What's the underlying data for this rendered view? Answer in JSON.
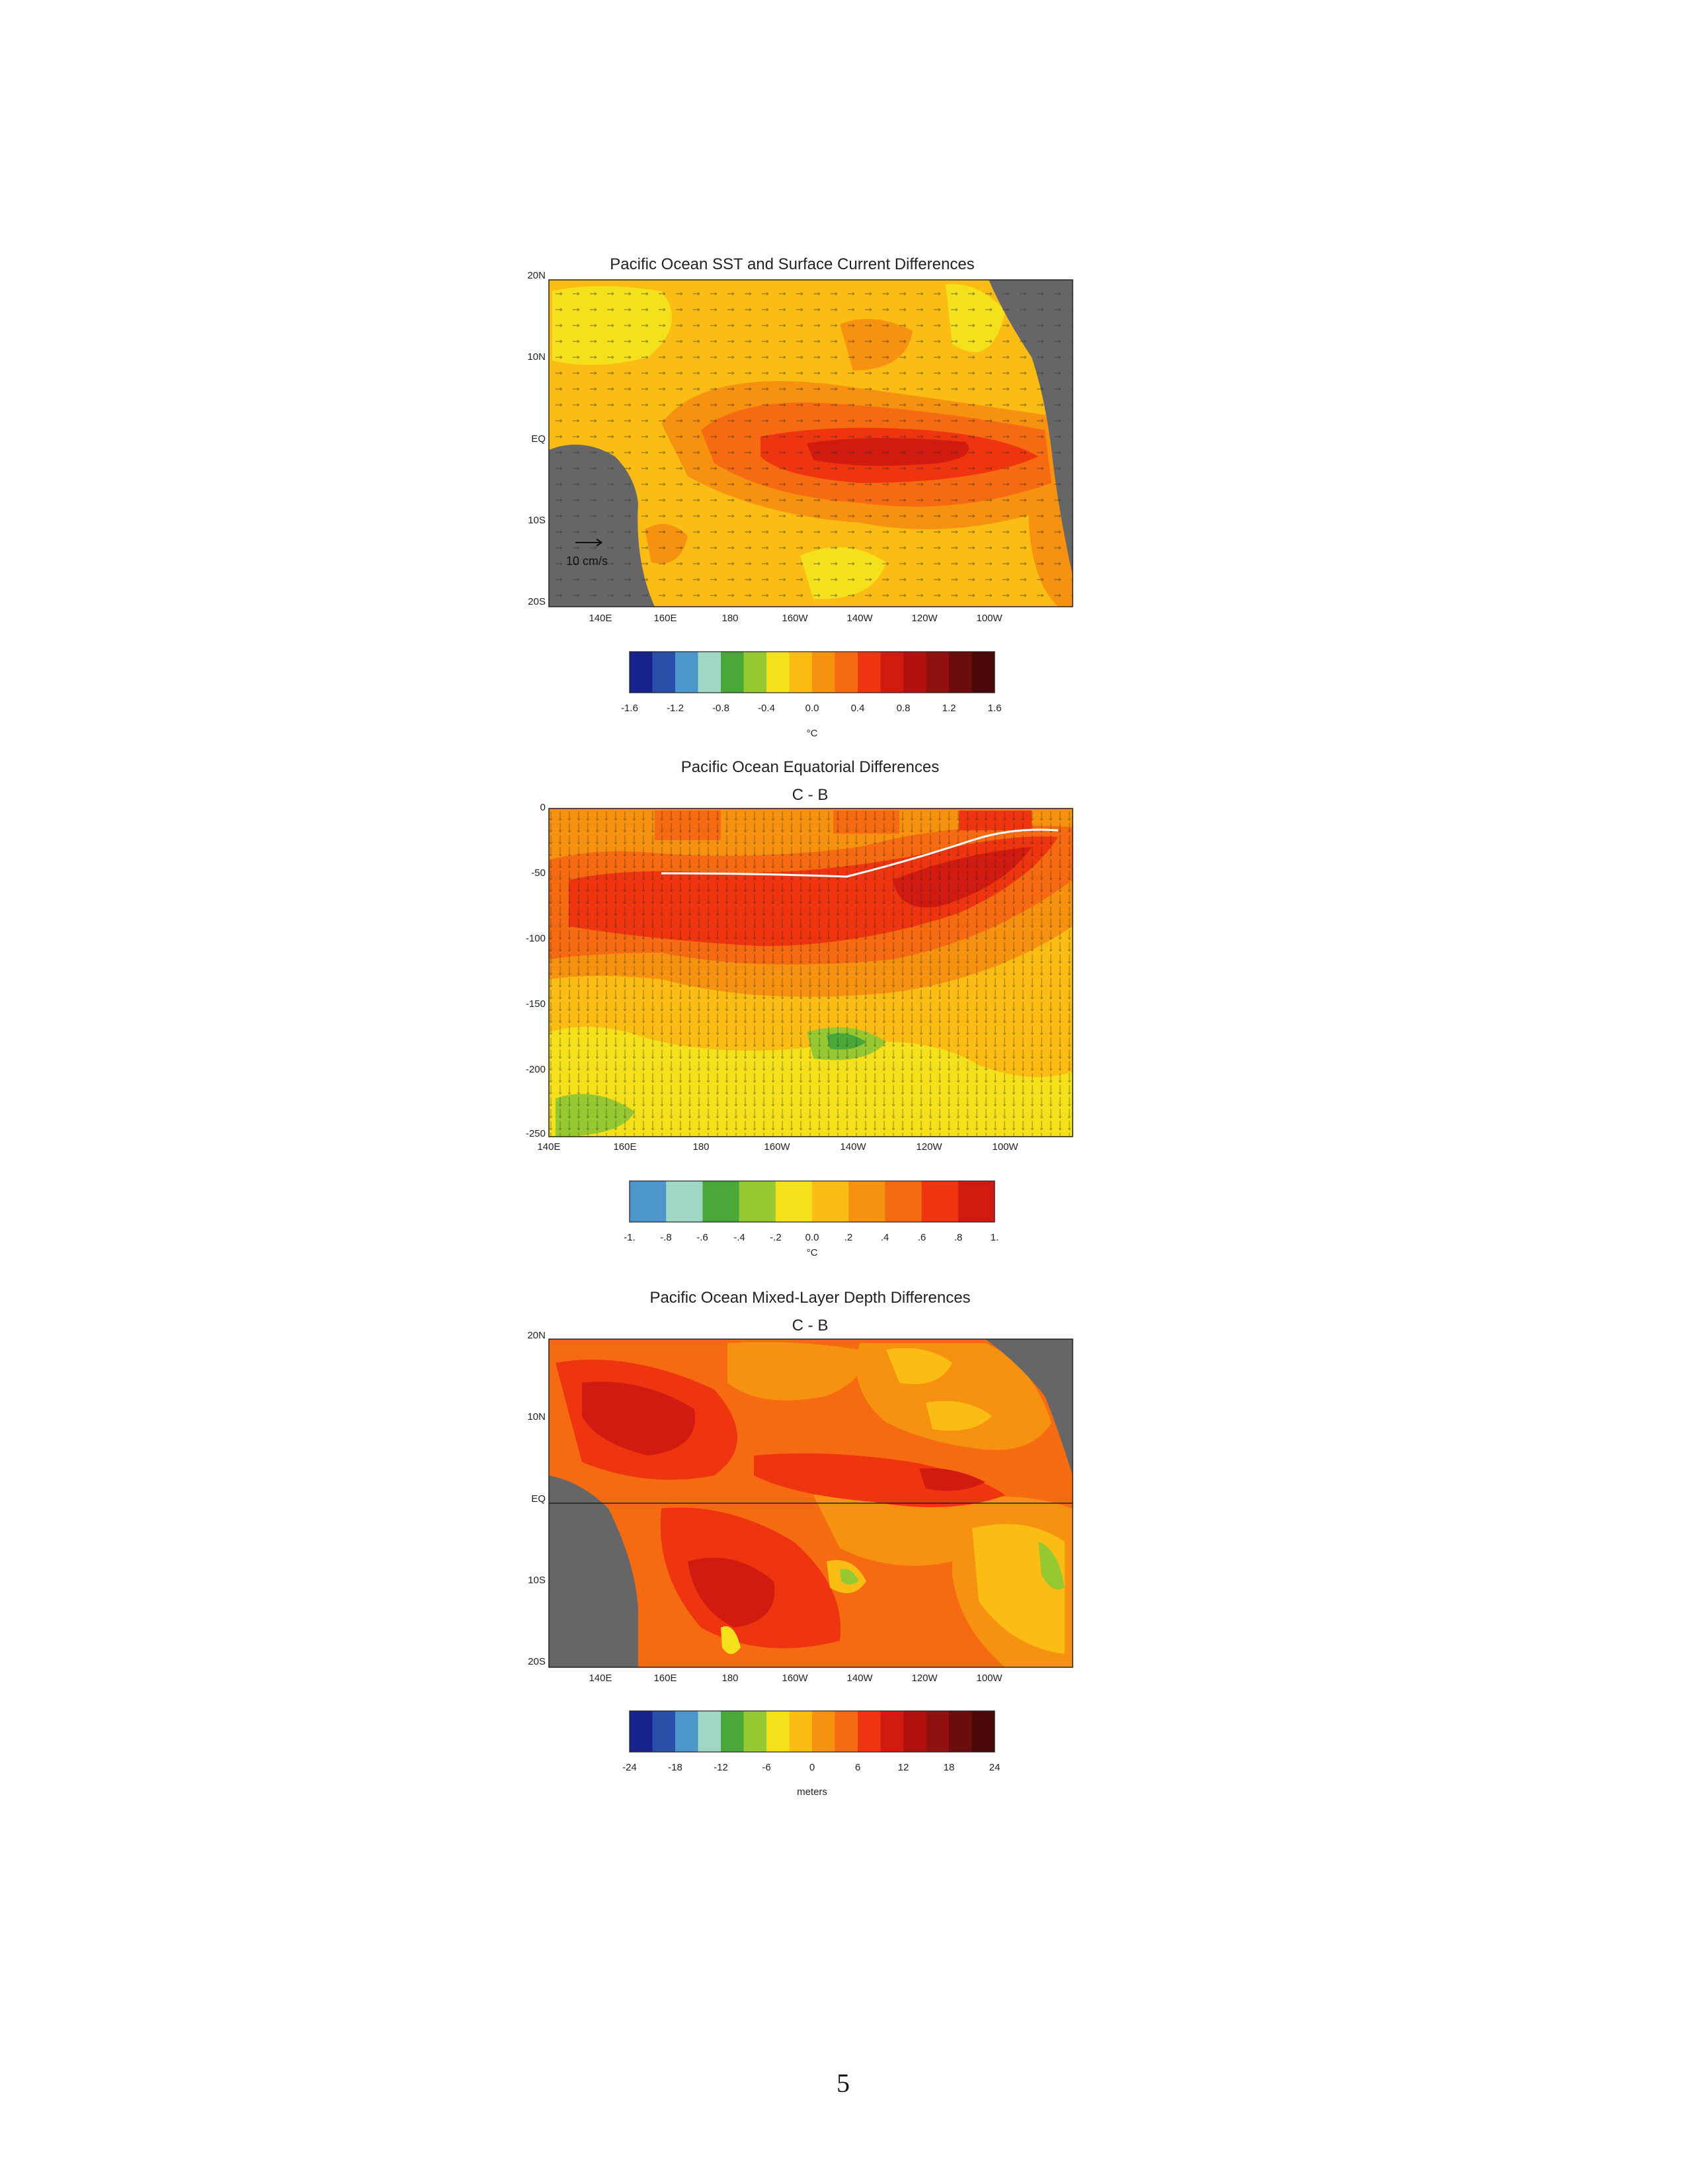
{
  "page": {
    "number": "5"
  },
  "chart_data": [
    {
      "type": "heatmap",
      "title": "Pacific Ocean SST and Surface Current Differences",
      "subtitle": "",
      "x_tick_labels": [
        "140E",
        "160E",
        "180",
        "160W",
        "140W",
        "120W",
        "100W"
      ],
      "y_tick_labels": [
        "20N",
        "10N",
        "EQ",
        "10S",
        "20S"
      ],
      "x_range": [
        "130E",
        "80W"
      ],
      "y_range": [
        "20S",
        "20N"
      ],
      "reference_vector": {
        "label": "10 cm/s",
        "value": 10
      },
      "colorbar": {
        "tick_labels": [
          "-1.6",
          "-1.2",
          "-0.8",
          "-0.4",
          "0.0",
          "0.4",
          "0.8",
          "1.2",
          "1.6"
        ],
        "unit": "°C",
        "colors": [
          "#16238c",
          "#2850a8",
          "#4c96cc",
          "#9fd7c7",
          "#4aa838",
          "#96c832",
          "#f4e11c",
          "#fbbd13",
          "#f79211",
          "#f66a11",
          "#ee3510",
          "#d11a10",
          "#b31010",
          "#911010",
          "#6d0c0c",
          "#4a0808"
        ]
      },
      "land_color": "#666666"
    },
    {
      "type": "heatmap",
      "title": "Pacific Ocean Equatorial Differences",
      "subtitle": "C - B",
      "x_tick_labels": [
        "140E",
        "160E",
        "180",
        "160W",
        "140W",
        "120W",
        "100W"
      ],
      "y_tick_labels": [
        "0",
        "-50",
        "-100",
        "-150",
        "-200",
        "-250"
      ],
      "y_range": [
        -250,
        0
      ],
      "colorbar": {
        "tick_labels": [
          "-1.",
          "-.8",
          "-.6",
          "-.4",
          "-.2",
          "0.0",
          ".2",
          ".4",
          ".6",
          ".8",
          "1."
        ],
        "unit": "°C",
        "colors": [
          "#4c96cc",
          "#9fd7c7",
          "#4aa838",
          "#96c832",
          "#f4e11c",
          "#fbbd13",
          "#f79211",
          "#f66a11",
          "#ee3510",
          "#d11a10"
        ]
      }
    },
    {
      "type": "heatmap",
      "title": "Pacific Ocean Mixed-Layer Depth Differences",
      "subtitle": "C - B",
      "x_tick_labels": [
        "140E",
        "160E",
        "180",
        "160W",
        "140W",
        "120W",
        "100W"
      ],
      "y_tick_labels": [
        "20N",
        "10N",
        "EQ",
        "10S",
        "20S"
      ],
      "y_range": [
        "20S",
        "20N"
      ],
      "colorbar": {
        "tick_labels": [
          "-24",
          "-18",
          "-12",
          "-6",
          "0",
          "6",
          "12",
          "18",
          "24"
        ],
        "unit": "meters",
        "colors": [
          "#16238c",
          "#2850a8",
          "#4c96cc",
          "#9fd7c7",
          "#4aa838",
          "#96c832",
          "#f4e11c",
          "#fbbd13",
          "#f79211",
          "#f66a11",
          "#ee3510",
          "#d11a10",
          "#b31010",
          "#911010",
          "#6d0c0c",
          "#4a0808"
        ]
      },
      "land_color": "#666666"
    }
  ]
}
